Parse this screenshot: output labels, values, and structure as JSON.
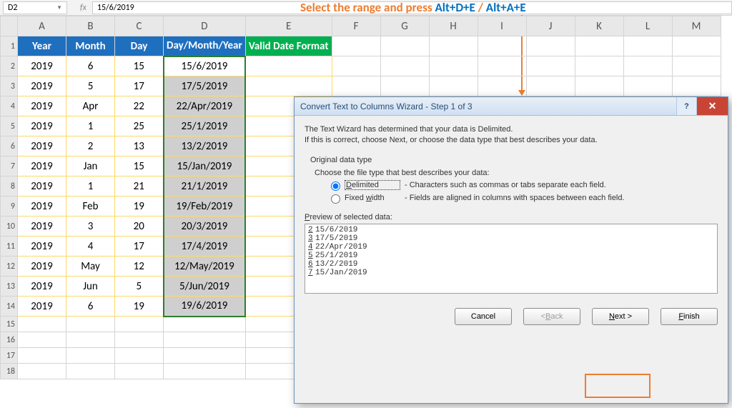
{
  "namebox": "D2",
  "formula": "15/6/2019",
  "annotation": {
    "text": "Select the range and press ",
    "k1": "Alt+D+E",
    "sep": " / ",
    "k2": "Alt+A+E"
  },
  "columns": [
    "A",
    "B",
    "C",
    "D",
    "E",
    "F",
    "G",
    "H",
    "I",
    "J",
    "K",
    "L",
    "M"
  ],
  "headers": {
    "a": "Year",
    "b": "Month",
    "c": "Day",
    "d": "Day/Month/Year",
    "e": "Valid Date Format"
  },
  "rows": [
    {
      "n": "2",
      "y": "2019",
      "m": "6",
      "d": "15",
      "dm": "15/6/2019"
    },
    {
      "n": "3",
      "y": "2019",
      "m": "5",
      "d": "17",
      "dm": "17/5/2019"
    },
    {
      "n": "4",
      "y": "2019",
      "m": "Apr",
      "d": "22",
      "dm": "22/Apr/2019"
    },
    {
      "n": "5",
      "y": "2019",
      "m": "1",
      "d": "25",
      "dm": "25/1/2019"
    },
    {
      "n": "6",
      "y": "2019",
      "m": "2",
      "d": "13",
      "dm": "13/2/2019"
    },
    {
      "n": "7",
      "y": "2019",
      "m": "Jan",
      "d": "15",
      "dm": "15/Jan/2019"
    },
    {
      "n": "8",
      "y": "2019",
      "m": "1",
      "d": "21",
      "dm": "21/1/2019"
    },
    {
      "n": "9",
      "y": "2019",
      "m": "Feb",
      "d": "19",
      "dm": "19/Feb/2019"
    },
    {
      "n": "10",
      "y": "2019",
      "m": "3",
      "d": "20",
      "dm": "20/3/2019"
    },
    {
      "n": "11",
      "y": "2019",
      "m": "4",
      "d": "17",
      "dm": "17/4/2019"
    },
    {
      "n": "12",
      "y": "2019",
      "m": "May",
      "d": "12",
      "dm": "12/May/2019"
    },
    {
      "n": "13",
      "y": "2019",
      "m": "Jun",
      "d": "5",
      "dm": "5/Jun/2019"
    },
    {
      "n": "14",
      "y": "2019",
      "m": "6",
      "d": "19",
      "dm": "19/6/2019"
    }
  ],
  "empty_rows": [
    "15",
    "16",
    "17",
    "18"
  ],
  "dialog": {
    "title": "Convert Text to Columns Wizard - Step 1 of 3",
    "p1": "The Text Wizard has determined that your data is Delimited.",
    "p2": "If this is correct, choose Next, or choose the data type that best describes your data.",
    "group": "Original data type",
    "choose": "Choose the file type that best describes your data:",
    "opt1": "Delimited",
    "opt1d": "- Characters such as commas or tabs separate each field.",
    "opt2": "Fixed width",
    "opt2d": "- Fields are aligned in columns with spaces between each field.",
    "preview_lbl": "Preview of selected data:",
    "preview": [
      {
        "n": "2",
        "t": "15/6/2019"
      },
      {
        "n": "3",
        "t": "17/5/2019"
      },
      {
        "n": "4",
        "t": "22/Apr/2019"
      },
      {
        "n": "5",
        "t": "25/1/2019"
      },
      {
        "n": "6",
        "t": "13/2/2019"
      },
      {
        "n": "7",
        "t": "15/Jan/2019"
      }
    ],
    "btn_cancel": "Cancel",
    "btn_back": "< Back",
    "btn_next": "Next >",
    "btn_finish": "Finish"
  },
  "styling": {
    "accent_orange": "#ed7d31",
    "accent_blue": "#0070c0",
    "hdr_blue": "#1f6fbf",
    "hdr_green": "#00b050",
    "grid_yellow": "#ffd966",
    "sel_fill": "#cfcfcf",
    "sel_border": "#2e7d32",
    "dialog_bg": "#f0f0f0",
    "title_text": "#274f76",
    "close_btn": "#c84536"
  }
}
